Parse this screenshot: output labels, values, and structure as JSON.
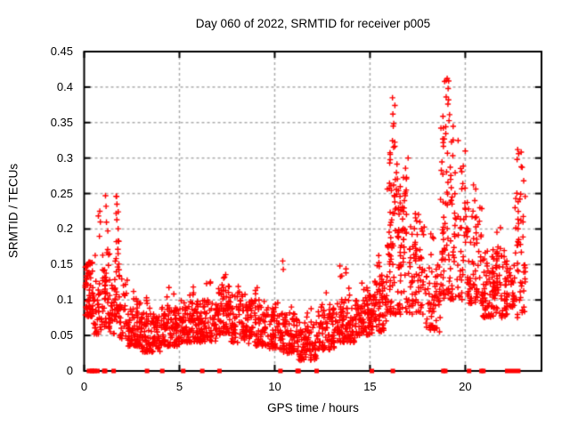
{
  "chart_data": {
    "type": "scatter",
    "title": "Day 060 of 2022, SRMTID for receiver p005",
    "xlabel": "GPS time / hours",
    "ylabel": "SRMTID / TECUs",
    "xlim": [
      0,
      24
    ],
    "ylim": [
      0,
      0.45
    ],
    "x_ticks": [
      0,
      5,
      10,
      15,
      20
    ],
    "x_tick_labels": [
      "0",
      "5",
      "10",
      "15",
      "20"
    ],
    "y_ticks": [
      0,
      0.05,
      0.1,
      0.15,
      0.2,
      0.25,
      0.3,
      0.35,
      0.4,
      0.45
    ],
    "y_tick_labels": [
      "0",
      "0.05",
      "0.1",
      "0.15",
      "0.2",
      "0.25",
      "0.3",
      "0.35",
      "0.4",
      "0.45"
    ],
    "grid": true,
    "legend": "none",
    "marker": {
      "shape": "plus",
      "color": "#ff0000",
      "size": 7
    },
    "grid_color": "#ababab",
    "border_color": "#000000",
    "background_color": "#ffffff",
    "seed": 1234,
    "series_profile_format": [
      "t_start_hours",
      "t_end_hours",
      "n_points",
      "value_min_TECUs",
      "value_max_TECUs",
      "tail_max_TECUs",
      "tail_n"
    ],
    "series_profile": [
      [
        0.05,
        0.45,
        60,
        0.075,
        0.155
      ],
      [
        0.45,
        0.95,
        40,
        0.05,
        0.135,
        0.225,
        3
      ],
      [
        0.95,
        1.35,
        45,
        0.06,
        0.165,
        0.25,
        4
      ],
      [
        1.35,
        1.6,
        18,
        0.05,
        0.125
      ],
      [
        1.6,
        1.85,
        35,
        0.07,
        0.2,
        0.247,
        4
      ],
      [
        1.85,
        2.3,
        30,
        0.045,
        0.13
      ],
      [
        2.3,
        3.0,
        80,
        0.035,
        0.1,
        0.12,
        3
      ],
      [
        3.0,
        4.0,
        110,
        0.027,
        0.082,
        0.105,
        4
      ],
      [
        4.0,
        5.0,
        100,
        0.035,
        0.09,
        0.12,
        4
      ],
      [
        5.0,
        6.0,
        100,
        0.04,
        0.1,
        0.125,
        4
      ],
      [
        6.0,
        7.0,
        90,
        0.04,
        0.1,
        0.13,
        3
      ],
      [
        7.0,
        7.7,
        70,
        0.05,
        0.12,
        0.138,
        4
      ],
      [
        7.7,
        8.6,
        75,
        0.04,
        0.11,
        0.13,
        3
      ],
      [
        8.6,
        9.6,
        85,
        0.035,
        0.1,
        0.12,
        3
      ],
      [
        9.6,
        10.4,
        65,
        0.03,
        0.09,
        0.12,
        2
      ],
      [
        10.4,
        11.2,
        70,
        0.025,
        0.08,
        0.1,
        3
      ],
      [
        11.2,
        12.2,
        80,
        0.015,
        0.07,
        0.095,
        3
      ],
      [
        12.2,
        13.2,
        85,
        0.03,
        0.09,
        0.115,
        3
      ],
      [
        13.2,
        14.2,
        90,
        0.04,
        0.105,
        0.148,
        5
      ],
      [
        14.2,
        15.2,
        95,
        0.05,
        0.11,
        0.135,
        4
      ],
      [
        15.2,
        15.9,
        70,
        0.055,
        0.135,
        0.165,
        4
      ],
      [
        15.9,
        16.5,
        80,
        0.08,
        0.31,
        0.385,
        6
      ],
      [
        16.5,
        17.1,
        60,
        0.08,
        0.26,
        0.3,
        4
      ],
      [
        17.1,
        17.9,
        65,
        0.08,
        0.21,
        0.24,
        4
      ],
      [
        17.9,
        18.7,
        60,
        0.055,
        0.165,
        0.2,
        3
      ],
      [
        18.7,
        19.4,
        85,
        0.1,
        0.36,
        0.412,
        6
      ],
      [
        19.4,
        20.15,
        55,
        0.1,
        0.28,
        0.325,
        4
      ],
      [
        20.15,
        20.9,
        60,
        0.09,
        0.23,
        0.272,
        3
      ],
      [
        20.9,
        22.2,
        130,
        0.075,
        0.17,
        0.215,
        5
      ],
      [
        22.2,
        22.6,
        28,
        0.09,
        0.155
      ],
      [
        22.6,
        23.15,
        50,
        0.075,
        0.27,
        0.312,
        4
      ]
    ],
    "outlier_points": [
      [
        0.82,
        0.225
      ],
      [
        0.85,
        0.21
      ],
      [
        1.12,
        0.247
      ],
      [
        1.15,
        0.232
      ],
      [
        1.68,
        0.222
      ],
      [
        1.7,
        0.246
      ],
      [
        1.72,
        0.235
      ],
      [
        10.42,
        0.155
      ],
      [
        10.45,
        0.143
      ],
      [
        13.42,
        0.148
      ],
      [
        13.45,
        0.133
      ],
      [
        16.18,
        0.385
      ],
      [
        16.2,
        0.362
      ],
      [
        16.22,
        0.345
      ],
      [
        17.0,
        0.3
      ],
      [
        19.05,
        0.412
      ],
      [
        19.1,
        0.398
      ],
      [
        19.12,
        0.382
      ],
      [
        20.0,
        0.31
      ],
      [
        22.72,
        0.298
      ],
      [
        22.75,
        0.312
      ]
    ],
    "zero_value_marks_t": [
      0.25,
      0.4,
      0.45,
      0.55,
      0.7,
      1.05,
      1.1,
      1.55,
      3.3,
      4.1,
      5.2,
      6.2,
      7.1,
      10.3,
      11.2,
      11.25,
      12.2,
      15.1,
      16.2,
      18.85,
      18.95,
      20.2,
      20.85,
      20.95
    ],
    "zero_value_bars_t": [
      [
        22.2,
        22.78
      ]
    ]
  }
}
